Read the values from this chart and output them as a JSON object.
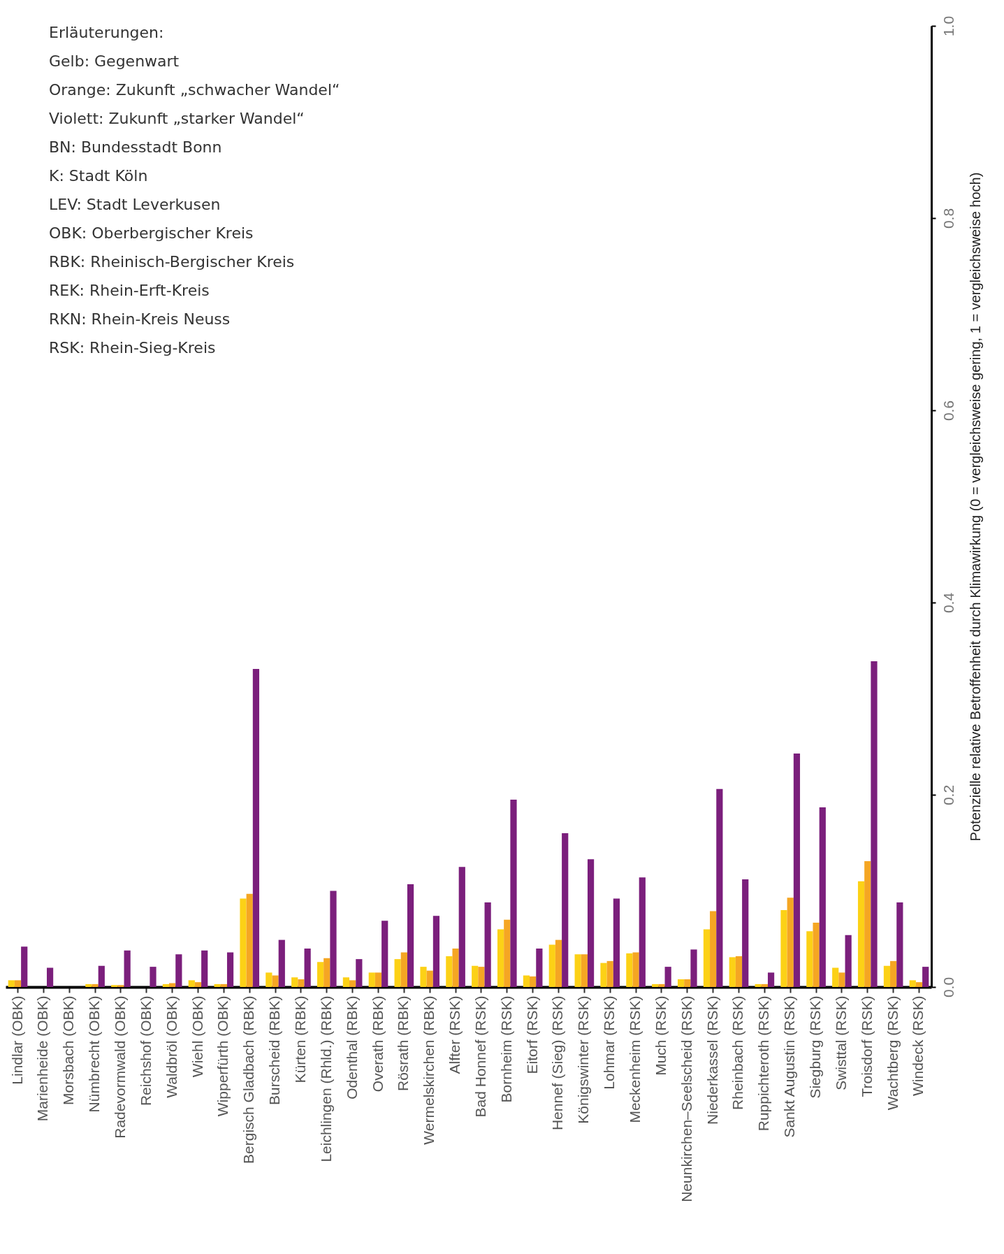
{
  "chart_data": {
    "type": "bar",
    "ylabel": "Potenzielle relative Betroffenheit durch Klimawirkung (0 = vergleichsweise gering, 1 = vergleichsweise hoch)",
    "categories": [
      "Lindlar (OBK)",
      "Marienheide (OBK)",
      "Morsbach (OBK)",
      "Nümbrecht (OBK)",
      "Radevormwald (OBK)",
      "Reichshof (OBK)",
      "Waldbröl (OBK)",
      "Wiehl (OBK)",
      "Wipperfürth (OBK)",
      "Bergisch Gladbach (RBK)",
      "Burscheid (RBK)",
      "Kürten (RBK)",
      "Leichlingen (Rhld.) (RBK)",
      "Odenthal (RBK)",
      "Overath (RBK)",
      "Rösrath (RBK)",
      "Wermelskirchen (RBK)",
      "Alfter (RSK)",
      "Bad Honnef (RSK)",
      "Bornheim (RSK)",
      "Eitorf (RSK)",
      "Hennef (Sieg) (RSK)",
      "Königswinter (RSK)",
      "Lohmar (RSK)",
      "Meckenheim (RSK)",
      "Much (RSK)",
      "Neunkirchen–Seelscheid (RSK)",
      "Niederkassel (RSK)",
      "Rheinbach (RSK)",
      "Ruppichteroth (RSK)",
      "Sankt Augustin (RSK)",
      "Siegburg (RSK)",
      "Swisttal (RSK)",
      "Troisdorf (RSK)",
      "Wachtberg (RSK)",
      "Windeck (RSK)"
    ],
    "series": [
      {
        "color": "#fcd116",
        "values": [
          0.007,
          0,
          0,
          0.003,
          0.002,
          0,
          0.003,
          0.007,
          0.003,
          0.092,
          0.015,
          0.01,
          0.026,
          0.01,
          0.015,
          0.029,
          0.021,
          0.032,
          0.022,
          0.06,
          0.012,
          0.044,
          0.034,
          0.025,
          0.035,
          0.003,
          0.008,
          0.06,
          0.031,
          0.003,
          0.08,
          0.058,
          0.02,
          0.11,
          0.022,
          0.007
        ]
      },
      {
        "color": "#f5a623",
        "values": [
          0.007,
          0,
          0,
          0.003,
          0.002,
          0,
          0.004,
          0.005,
          0.003,
          0.097,
          0.012,
          0.008,
          0.03,
          0.007,
          0.015,
          0.036,
          0.017,
          0.04,
          0.021,
          0.07,
          0.011,
          0.049,
          0.034,
          0.027,
          0.036,
          0.003,
          0.008,
          0.079,
          0.032,
          0.003,
          0.093,
          0.067,
          0.015,
          0.131,
          0.027,
          0.005
        ]
      },
      {
        "color": "#7b1f7c",
        "values": [
          0.042,
          0.02,
          0,
          0.022,
          0.038,
          0.021,
          0.034,
          0.038,
          0.036,
          0.331,
          0.049,
          0.04,
          0.1,
          0.029,
          0.069,
          0.107,
          0.074,
          0.125,
          0.088,
          0.195,
          0.04,
          0.16,
          0.133,
          0.092,
          0.114,
          0.021,
          0.039,
          0.206,
          0.112,
          0.015,
          0.243,
          0.187,
          0.054,
          0.339,
          0.088,
          0.021
        ]
      }
    ],
    "ylim": [
      0,
      1
    ],
    "yticks": [
      {
        "value": 0,
        "label": "0.0"
      },
      {
        "value": 0.2,
        "label": "0.2"
      },
      {
        "value": 0.4,
        "label": "0.4"
      },
      {
        "value": 0.6,
        "label": "0.6"
      },
      {
        "value": 0.8,
        "label": "0.8"
      },
      {
        "value": 1,
        "label": "1.0"
      }
    ],
    "grid": false,
    "legend": false,
    "annotations": [
      "Erläuterungen:",
      "Gelb:      Gegenwart",
      "Orange:  Zukunft „schwacher Wandel“",
      "Violett:  Zukunft „starker Wandel“",
      "BN:         Bundesstadt Bonn",
      "K:            Stadt Köln",
      "LEV:        Stadt Leverkusen",
      "OBK:       Oberbergischer Kreis",
      "RBK:       Rheinisch-Bergischer Kreis",
      "REK:       Rhein-Erft-Kreis",
      "RKN:       Rhein-Kreis Neuss",
      "RSK:       Rhein-Sieg-Kreis"
    ]
  }
}
